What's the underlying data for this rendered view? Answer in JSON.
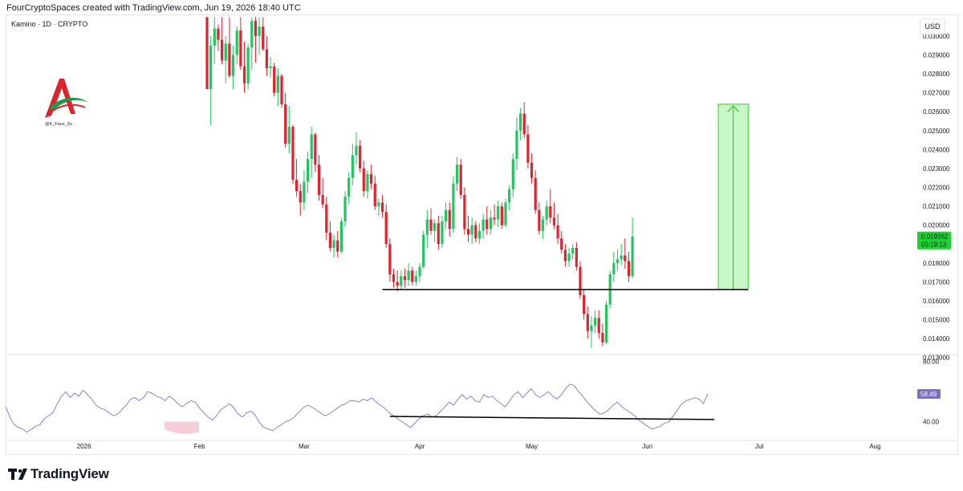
{
  "header": {
    "text": "FourCryptoSpaces created with TradingView.com, Jun 19, 2026 18:40 UTC"
  },
  "symbol": {
    "text": "Kamino · 1D · CRYPTO"
  },
  "currency": {
    "label": "USD"
  },
  "watermark": {
    "caption": "@K_Face_Sv"
  },
  "footer": {
    "brand": "TradingView",
    "icon": "tradingview-logo-icon"
  },
  "colors": {
    "up": "#22c55e",
    "down": "#e0242f",
    "target_zone": "#b6f5b6",
    "target_line": "#2ed12e",
    "rsi": "#8a84c8",
    "rsi_oversold": "#f6c9d4",
    "support": "#000000"
  },
  "chart_data": [
    {
      "type": "candlestick",
      "title": "Kamino · 1D · CRYPTO",
      "ylim": [
        0.0132,
        0.0311
      ],
      "y_ticks": [
        "0.030000",
        "0.029000",
        "0.028000",
        "0.027000",
        "0.026000",
        "0.025000",
        "0.024000",
        "0.023000",
        "0.022000",
        "0.021000",
        "0.020000",
        "0.018000",
        "0.017000",
        "0.016000",
        "0.015000",
        "0.014000",
        "0.013000"
      ],
      "x_ticks": [
        "2026",
        "Feb",
        "Mar",
        "Apr",
        "May",
        "Jun",
        "Jul",
        "Aug"
      ],
      "start_date": "2026-02-03",
      "last_price": {
        "price": "0.019362",
        "countdown": "05:19:13"
      },
      "support_line": {
        "from": "2026-03-22",
        "to": "2026-06-28",
        "price": 0.0166
      },
      "target_zone": {
        "from": "2026-06-20",
        "to": "2026-06-28",
        "bottom": 0.0166,
        "top": 0.0264
      },
      "ohlc": [
        [
          0.031,
          0.031,
          0.0272,
          0.0272
        ],
        [
          0.0272,
          0.03,
          0.0253,
          0.0295
        ],
        [
          0.0295,
          0.031,
          0.0285,
          0.0304
        ],
        [
          0.0304,
          0.0306,
          0.0292,
          0.0298
        ],
        [
          0.0298,
          0.031,
          0.0285,
          0.0287
        ],
        [
          0.0287,
          0.03,
          0.0275,
          0.0296
        ],
        [
          0.0296,
          0.031,
          0.0278,
          0.0279
        ],
        [
          0.0279,
          0.0295,
          0.0272,
          0.029
        ],
        [
          0.029,
          0.0305,
          0.0285,
          0.0303
        ],
        [
          0.0303,
          0.031,
          0.0282,
          0.0284
        ],
        [
          0.0284,
          0.0297,
          0.027,
          0.0275
        ],
        [
          0.0275,
          0.0296,
          0.0272,
          0.0294
        ],
        [
          0.0294,
          0.031,
          0.0282,
          0.0308
        ],
        [
          0.0308,
          0.031,
          0.0286,
          0.03
        ],
        [
          0.03,
          0.031,
          0.029,
          0.0305
        ],
        [
          0.0305,
          0.031,
          0.0292,
          0.0293
        ],
        [
          0.0293,
          0.03,
          0.0279,
          0.0283
        ],
        [
          0.0283,
          0.0289,
          0.0278,
          0.0284
        ],
        [
          0.0284,
          0.0286,
          0.0268,
          0.027
        ],
        [
          0.027,
          0.0283,
          0.0263,
          0.0279
        ],
        [
          0.0279,
          0.028,
          0.0262,
          0.0264
        ],
        [
          0.0264,
          0.027,
          0.0241,
          0.0243
        ],
        [
          0.0243,
          0.0263,
          0.0238,
          0.0252
        ],
        [
          0.0252,
          0.0253,
          0.0222,
          0.0224
        ],
        [
          0.0224,
          0.0235,
          0.0215,
          0.0218
        ],
        [
          0.0218,
          0.0222,
          0.0205,
          0.0212
        ],
        [
          0.0212,
          0.0229,
          0.0208,
          0.0223
        ],
        [
          0.0223,
          0.0239,
          0.0217,
          0.0235
        ],
        [
          0.0235,
          0.0252,
          0.0225,
          0.0248
        ],
        [
          0.0248,
          0.0249,
          0.0228,
          0.0232
        ],
        [
          0.0232,
          0.0237,
          0.0213,
          0.0216
        ],
        [
          0.0216,
          0.0225,
          0.0209,
          0.0211
        ],
        [
          0.0211,
          0.0215,
          0.0192,
          0.0196
        ],
        [
          0.0196,
          0.0202,
          0.0186,
          0.0188
        ],
        [
          0.0188,
          0.0195,
          0.0183,
          0.0192
        ],
        [
          0.0192,
          0.0197,
          0.0183,
          0.0186
        ],
        [
          0.0186,
          0.0204,
          0.0185,
          0.0202
        ],
        [
          0.0202,
          0.0218,
          0.0199,
          0.0215
        ],
        [
          0.0215,
          0.0228,
          0.0211,
          0.0225
        ],
        [
          0.0225,
          0.0243,
          0.0221,
          0.0237
        ],
        [
          0.0237,
          0.0249,
          0.0232,
          0.0242
        ],
        [
          0.0242,
          0.0245,
          0.0228,
          0.023
        ],
        [
          0.023,
          0.0234,
          0.0215,
          0.0218
        ],
        [
          0.0218,
          0.0229,
          0.0214,
          0.0227
        ],
        [
          0.0227,
          0.0232,
          0.0219,
          0.0222
        ],
        [
          0.0222,
          0.0226,
          0.0208,
          0.021
        ],
        [
          0.021,
          0.0214,
          0.0205,
          0.0212
        ],
        [
          0.0212,
          0.0216,
          0.0204,
          0.0207
        ],
        [
          0.0207,
          0.0211,
          0.0188,
          0.019
        ],
        [
          0.019,
          0.0193,
          0.017,
          0.0174
        ],
        [
          0.0174,
          0.0177,
          0.0167,
          0.017
        ],
        [
          0.017,
          0.0176,
          0.0165,
          0.0168
        ],
        [
          0.0168,
          0.0176,
          0.0166,
          0.0173
        ],
        [
          0.0173,
          0.0177,
          0.0167,
          0.0171
        ],
        [
          0.0171,
          0.018,
          0.0168,
          0.0176
        ],
        [
          0.0176,
          0.0178,
          0.0168,
          0.017
        ],
        [
          0.017,
          0.0176,
          0.0168,
          0.0173
        ],
        [
          0.0173,
          0.018,
          0.017,
          0.0178
        ],
        [
          0.0178,
          0.0197,
          0.0177,
          0.0195
        ],
        [
          0.0195,
          0.0208,
          0.0188,
          0.0203
        ],
        [
          0.0203,
          0.0209,
          0.0195,
          0.0197
        ],
        [
          0.0197,
          0.0203,
          0.0191,
          0.0201
        ],
        [
          0.0201,
          0.0205,
          0.0187,
          0.019
        ],
        [
          0.019,
          0.0205,
          0.0188,
          0.0202
        ],
        [
          0.0202,
          0.0212,
          0.0198,
          0.0208
        ],
        [
          0.0208,
          0.0212,
          0.0194,
          0.0198
        ],
        [
          0.0198,
          0.0226,
          0.0196,
          0.0222
        ],
        [
          0.0222,
          0.0236,
          0.0218,
          0.0232
        ],
        [
          0.0232,
          0.0235,
          0.0214,
          0.0216
        ],
        [
          0.0216,
          0.022,
          0.0195,
          0.0198
        ],
        [
          0.0198,
          0.0205,
          0.0191,
          0.0195
        ],
        [
          0.0195,
          0.0204,
          0.019,
          0.02
        ],
        [
          0.02,
          0.0202,
          0.0191,
          0.0193
        ],
        [
          0.0193,
          0.0201,
          0.019,
          0.0197
        ],
        [
          0.0197,
          0.0206,
          0.0193,
          0.0203
        ],
        [
          0.0203,
          0.021,
          0.0195,
          0.0198
        ],
        [
          0.0198,
          0.0208,
          0.0195,
          0.0204
        ],
        [
          0.0204,
          0.0211,
          0.02,
          0.0203
        ],
        [
          0.0203,
          0.0213,
          0.0199,
          0.021
        ],
        [
          0.021,
          0.0212,
          0.0198,
          0.02
        ],
        [
          0.02,
          0.0214,
          0.0199,
          0.0212
        ],
        [
          0.0212,
          0.0221,
          0.0208,
          0.0219
        ],
        [
          0.0219,
          0.0238,
          0.0215,
          0.0235
        ],
        [
          0.0235,
          0.0257,
          0.0229,
          0.025
        ],
        [
          0.025,
          0.0262,
          0.0245,
          0.0259
        ],
        [
          0.0259,
          0.0265,
          0.0246,
          0.0248
        ],
        [
          0.0248,
          0.0253,
          0.023,
          0.0233
        ],
        [
          0.0233,
          0.0238,
          0.0222,
          0.0225
        ],
        [
          0.0225,
          0.0229,
          0.0206,
          0.0208
        ],
        [
          0.0208,
          0.0212,
          0.0195,
          0.0197
        ],
        [
          0.0197,
          0.0205,
          0.0193,
          0.0203
        ],
        [
          0.0203,
          0.0213,
          0.02,
          0.021
        ],
        [
          0.021,
          0.0219,
          0.0201,
          0.0204
        ],
        [
          0.0204,
          0.0212,
          0.0198,
          0.02
        ],
        [
          0.02,
          0.0206,
          0.019,
          0.0193
        ],
        [
          0.0193,
          0.0197,
          0.0185,
          0.0187
        ],
        [
          0.0187,
          0.019,
          0.0178,
          0.0181
        ],
        [
          0.0181,
          0.0188,
          0.0178,
          0.0185
        ],
        [
          0.0185,
          0.019,
          0.0182,
          0.0188
        ],
        [
          0.0188,
          0.0191,
          0.0176,
          0.0178
        ],
        [
          0.0178,
          0.0181,
          0.0161,
          0.0163
        ],
        [
          0.0163,
          0.0166,
          0.015,
          0.0153
        ],
        [
          0.0153,
          0.0157,
          0.014,
          0.0144
        ],
        [
          0.0144,
          0.0152,
          0.0135,
          0.0147
        ],
        [
          0.0147,
          0.0155,
          0.0143,
          0.0151
        ],
        [
          0.0151,
          0.0155,
          0.014,
          0.0143
        ],
        [
          0.0143,
          0.0148,
          0.0136,
          0.0138
        ],
        [
          0.0138,
          0.016,
          0.0137,
          0.0158
        ],
        [
          0.0158,
          0.0176,
          0.0156,
          0.0174
        ],
        [
          0.0174,
          0.0186,
          0.017,
          0.018
        ],
        [
          0.018,
          0.0187,
          0.0176,
          0.0182
        ],
        [
          0.0182,
          0.019,
          0.0179,
          0.0184
        ],
        [
          0.0184,
          0.0193,
          0.0177,
          0.0181
        ],
        [
          0.0181,
          0.0186,
          0.017,
          0.0173
        ],
        [
          0.0173,
          0.0204,
          0.0172,
          0.0194
        ]
      ]
    },
    {
      "type": "line",
      "series": [
        {
          "name": "",
          "values": [
            50,
            43,
            38,
            36,
            35,
            33,
            35,
            37,
            38,
            42,
            44,
            46,
            52,
            57,
            60,
            56,
            59,
            57,
            61,
            58,
            55,
            51,
            49,
            48,
            46,
            44,
            45,
            48,
            51,
            55,
            56,
            54,
            56,
            60,
            59,
            57,
            56,
            54,
            57,
            55,
            52,
            50,
            52,
            54,
            53,
            49,
            46,
            43,
            41,
            44,
            48,
            50,
            52,
            49,
            45,
            43,
            46,
            47,
            44,
            39,
            36,
            35,
            34,
            36,
            38,
            40,
            41,
            43,
            46,
            49,
            51,
            50,
            48,
            46,
            44,
            45,
            47,
            49,
            51,
            52,
            54,
            54,
            53,
            55,
            54,
            56,
            53,
            51,
            49,
            46,
            44,
            42,
            40,
            38,
            36,
            39,
            42,
            44,
            45,
            43,
            44,
            47,
            50,
            53,
            51,
            55,
            58,
            55,
            57,
            54,
            53,
            58,
            56,
            57,
            54,
            52,
            50,
            54,
            58,
            60,
            56,
            59,
            62,
            58,
            56,
            58,
            60,
            57,
            55,
            58,
            62,
            65,
            64,
            60,
            57,
            53,
            50,
            47,
            45,
            46,
            48,
            51,
            53,
            50,
            48,
            46,
            44,
            41,
            39,
            37,
            35,
            36,
            37,
            39,
            40,
            44,
            48,
            52,
            54,
            55,
            56,
            55,
            52,
            58.49
          ]
        }
      ],
      "y_ticks": [
        "80.00",
        "40.00"
      ],
      "last_value": "58.49",
      "support_line": {
        "from_value": 43.5,
        "to_value": 41.4
      }
    }
  ]
}
